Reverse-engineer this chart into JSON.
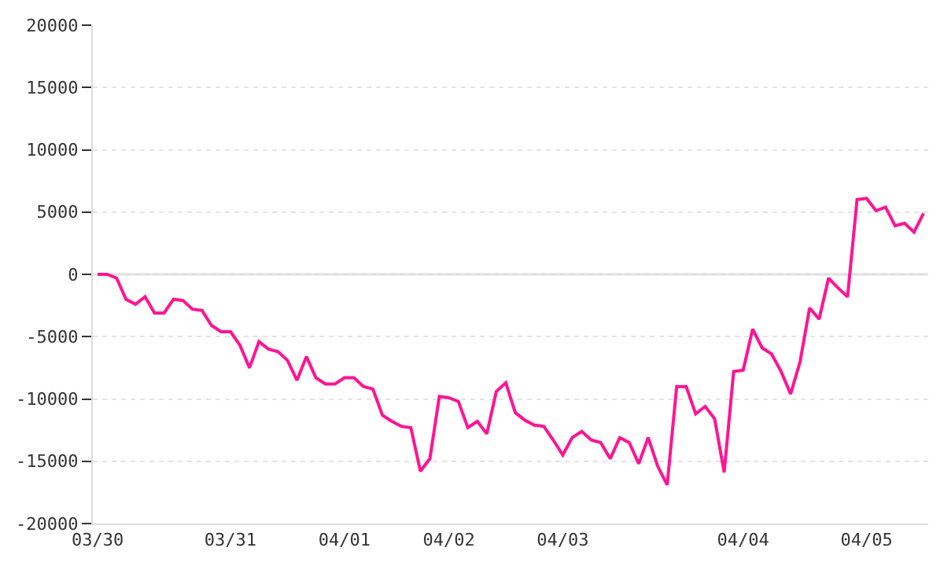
{
  "chart_data": {
    "type": "line",
    "categories": [
      "03/30",
      null,
      null,
      null,
      null,
      null,
      null,
      null,
      null,
      null,
      null,
      null,
      null,
      null,
      "03/31",
      null,
      null,
      null,
      null,
      null,
      null,
      null,
      null,
      null,
      null,
      null,
      "04/01",
      null,
      null,
      null,
      null,
      null,
      null,
      null,
      null,
      null,
      null,
      "04/02",
      null,
      null,
      null,
      null,
      null,
      null,
      null,
      null,
      null,
      null,
      null,
      "04/03",
      null,
      null,
      null,
      null,
      null,
      null,
      null,
      null,
      null,
      null,
      null,
      null,
      null,
      null,
      null,
      null,
      null,
      null,
      "04/04",
      null,
      null,
      null,
      null,
      null,
      null,
      null,
      null,
      null,
      null,
      null,
      null,
      "04/05",
      null,
      null,
      null,
      null,
      null,
      null
    ],
    "series": [
      {
        "color": "#ff1493",
        "values": [
          0,
          0,
          -300,
          -2000,
          -2400,
          -1800,
          -3100,
          -3100,
          -2000,
          -2100,
          -2800,
          -2900,
          -4100,
          -4600,
          -4600,
          -5700,
          -7500,
          -5400,
          -6000,
          -6200,
          -6900,
          -8500,
          -6600,
          -8300,
          -8800,
          -8800,
          -8300,
          -8300,
          -9000,
          -9200,
          -11300,
          -11800,
          -12200,
          -12300,
          -15800,
          -14800,
          -9800,
          -9900,
          -10200,
          -12300,
          -11800,
          -12800,
          -9400,
          -8700,
          -11100,
          -11700,
          -12100,
          -12200,
          -13300,
          -14500,
          -13100,
          -12600,
          -13300,
          -13500,
          -14800,
          -13100,
          -13500,
          -15200,
          -13100,
          -15400,
          -16900,
          -9000,
          -9000,
          -11200,
          -10600,
          -11600,
          -15900,
          -7800,
          -7700,
          -4400,
          -5900,
          -6400,
          -7800,
          -9600,
          -7000,
          -2700,
          -3600,
          -300,
          -1100,
          -1800,
          6000,
          6100,
          5100,
          5400,
          3900,
          4100,
          3400,
          4900
        ]
      }
    ],
    "ylim": [
      -20000,
      20000
    ],
    "yticks": [
      -20000,
      -15000,
      -10000,
      -5000,
      0,
      5000,
      10000,
      15000,
      20000
    ],
    "ref_lines": [
      {
        "axis": "y",
        "value": 0,
        "color": "#dddddd"
      }
    ],
    "grid": "y",
    "marker": "none",
    "line_style": "solid"
  }
}
